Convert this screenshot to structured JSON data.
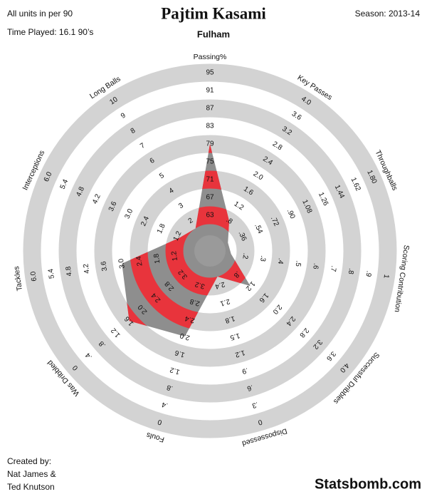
{
  "chart_data": {
    "type": "radar",
    "title": "Pajtim Kasami",
    "subtitle": "Fulham",
    "annotations": [
      "All units in per 90",
      "Time Played: 16.1 90’s",
      "Season: 2013-14"
    ],
    "credits": [
      "Created by:",
      "Nat James &",
      "Ted Knutson"
    ],
    "brand": "Statsbomb.com",
    "color": "#e8343c",
    "secondary_color": "#8e8e8e",
    "ring_color": "#d3d3d3",
    "axes": [
      {
        "name": "Passing%",
        "lim": [
          59,
          99
        ],
        "ticks": [
          63,
          67,
          71,
          75,
          79,
          83,
          87,
          91,
          95
        ],
        "value": 79
      },
      {
        "name": "Key Passes",
        "lim": [
          0.4,
          4.4
        ],
        "ticks": [
          {
            "value": 0.8,
            "label": ".8"
          },
          1.2,
          1.6,
          {
            "value": 2,
            "label": "2.0"
          },
          2.4,
          2.8,
          3.2,
          3.6,
          {
            "value": 4,
            "label": "4.0"
          }
        ],
        "value": 0.8
      },
      {
        "name": "Throughballs",
        "lim": [
          0.18,
          1.98
        ],
        "ticks": [
          {
            "value": 0.36,
            "label": ".36"
          },
          {
            "value": 0.54,
            "label": ".54"
          },
          {
            "value": 0.72,
            "label": ".72"
          },
          {
            "value": 0.9,
            "label": ".90"
          },
          1.08,
          1.26,
          1.44,
          1.62,
          {
            "value": 1.8,
            "label": "1.80"
          }
        ],
        "value": 0.2
      },
      {
        "name": "Scoring Contribution",
        "lim": [
          0.1,
          1.1
        ],
        "ticks": [
          {
            "value": 0.2,
            "label": ".2"
          },
          {
            "value": 0.3,
            "label": ".3"
          },
          {
            "value": 0.4,
            "label": ".4"
          },
          {
            "value": 0.5,
            "label": ".5"
          },
          {
            "value": 0.6,
            "label": ".6"
          },
          {
            "value": 0.7,
            "label": ".7"
          },
          {
            "value": 0.8,
            "label": ".8"
          },
          {
            "value": 0.9,
            "label": ".9"
          },
          1
        ],
        "value": 0.12
      },
      {
        "name": "Successful Dribbles",
        "lim": [
          0.4,
          4.4
        ],
        "ticks": [
          {
            "value": 0.8,
            "label": ".8"
          },
          1.2,
          1.6,
          {
            "value": 2,
            "label": "2.0"
          },
          2.4,
          2.8,
          3.2,
          3.6,
          {
            "value": 4,
            "label": "4.0"
          }
        ],
        "value": 1.2
      },
      {
        "name": "Dispossessed",
        "lim": [
          2.7,
          -0.3
        ],
        "ticks": [
          2.4,
          2.1,
          1.8,
          1.5,
          1.2,
          {
            "value": 0.9,
            "label": ".9"
          },
          {
            "value": 0.6,
            "label": ".6"
          },
          {
            "value": 0.3,
            "label": ".3"
          },
          0
        ],
        "value": 2.55
      },
      {
        "name": "Fouls",
        "lim": [
          3.6,
          -0.4
        ],
        "ticks": [
          3.2,
          2.8,
          2.4,
          {
            "value": 2,
            "label": "2.0"
          },
          1.6,
          1.2,
          {
            "value": 0.8,
            "label": ".8"
          },
          {
            "value": 0.4,
            "label": ".4"
          },
          0
        ],
        "value": 2.0
      },
      {
        "name": "Was Dribbled",
        "lim": [
          3.6,
          -0.4
        ],
        "ticks": [
          3.2,
          2.8,
          2.4,
          {
            "value": 2,
            "label": "2.0"
          },
          1.6,
          1.2,
          {
            "value": 0.8,
            "label": ".8"
          },
          {
            "value": 0.4,
            "label": ".4"
          },
          0
        ],
        "value": 1.6
      },
      {
        "name": "Tackles",
        "lim": [
          0.6,
          6.6
        ],
        "ticks": [
          1.2,
          1.8,
          2.4,
          {
            "value": 3,
            "label": "3.0"
          },
          3.6,
          4.2,
          4.8,
          5.4,
          {
            "value": 6,
            "label": "6.0"
          }
        ],
        "value": 3.0
      },
      {
        "name": "Interceptions",
        "lim": [
          0.6,
          6.6
        ],
        "ticks": [
          1.2,
          1.8,
          2.4,
          {
            "value": 3,
            "label": "3.0"
          },
          3.6,
          4.2,
          4.8,
          5.4,
          {
            "value": 6,
            "label": "6.0"
          }
        ],
        "value": 1.1
      },
      {
        "name": "Long Balls",
        "lim": [
          1,
          11
        ],
        "ticks": [
          2,
          3,
          4,
          5,
          6,
          7,
          8,
          9,
          10
        ],
        "value": 1.5
      }
    ]
  }
}
